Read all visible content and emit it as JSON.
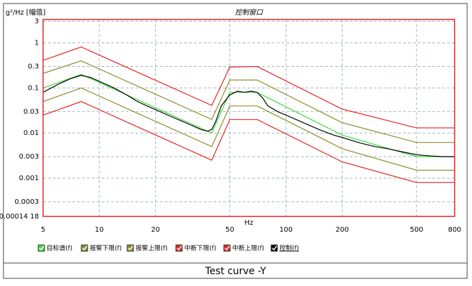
{
  "chart_data": {
    "type": "line",
    "title": "控制窗口",
    "y_label": "g²/Hz [幅值]",
    "x_label": "Hz",
    "caption": "Test curve -Y",
    "log_x": true,
    "log_y": true,
    "grid": true,
    "xlim": [
      5,
      800
    ],
    "ylim": [
      0.0001418,
      3.3
    ],
    "xticks": [
      5,
      10,
      20,
      50,
      100,
      200,
      500,
      800
    ],
    "yticks": [
      3,
      1,
      0.3,
      0.1,
      0.03,
      0.01,
      0.003,
      0.001,
      0.0003,
      {
        "value": 0.0001418,
        "label": "0.00014 18"
      }
    ],
    "series": [
      {
        "name": "目标谱(f)",
        "color": "#3cdc3c",
        "x": [
          5,
          8,
          40,
          50,
          70,
          200,
          500,
          800
        ],
        "values": [
          0.1,
          0.2,
          0.01,
          0.08,
          0.08,
          0.009,
          0.003,
          0.003
        ]
      },
      {
        "name": "报警下限(f)",
        "color": "#8c8c28",
        "x": [
          5,
          8,
          40,
          50,
          70,
          200,
          500,
          800
        ],
        "values": [
          0.05,
          0.1,
          0.005,
          0.04,
          0.04,
          0.0045,
          0.0015,
          0.0015
        ]
      },
      {
        "name": "报警上限(f)",
        "color": "#8c8c28",
        "x": [
          5,
          8,
          40,
          50,
          70,
          200,
          500,
          800
        ],
        "values": [
          0.21,
          0.4,
          0.02,
          0.15,
          0.15,
          0.017,
          0.0062,
          0.0062
        ]
      },
      {
        "name": "中断下限(f)",
        "color": "#e82020",
        "x": [
          5,
          8,
          40,
          50,
          70,
          200,
          500,
          800
        ],
        "values": [
          0.025,
          0.05,
          0.0025,
          0.02,
          0.02,
          0.0023,
          0.0008,
          0.0008
        ]
      },
      {
        "name": "中断上限(f)",
        "color": "#e82020",
        "x": [
          5,
          8,
          40,
          50,
          70,
          200,
          500,
          800
        ],
        "values": [
          0.41,
          0.81,
          0.041,
          0.29,
          0.3,
          0.034,
          0.013,
          0.013
        ]
      },
      {
        "name": "控制(f)",
        "color": "#000000",
        "x": [
          5,
          6,
          7,
          8,
          9,
          10,
          12,
          14,
          16,
          18,
          20,
          25,
          30,
          35,
          38,
          40,
          42,
          45,
          50,
          55,
          60,
          65,
          70,
          75,
          80,
          90,
          100,
          120,
          150,
          180,
          200,
          250,
          300,
          350,
          400,
          500,
          600,
          700,
          800
        ],
        "values": [
          0.08,
          0.12,
          0.16,
          0.19,
          0.17,
          0.14,
          0.1,
          0.07,
          0.05,
          0.04,
          0.033,
          0.022,
          0.016,
          0.012,
          0.011,
          0.012,
          0.018,
          0.04,
          0.07,
          0.085,
          0.08,
          0.085,
          0.08,
          0.06,
          0.04,
          0.03,
          0.025,
          0.018,
          0.012,
          0.009,
          0.008,
          0.006,
          0.005,
          0.0045,
          0.004,
          0.0033,
          0.0031,
          0.003,
          0.003
        ]
      }
    ]
  }
}
